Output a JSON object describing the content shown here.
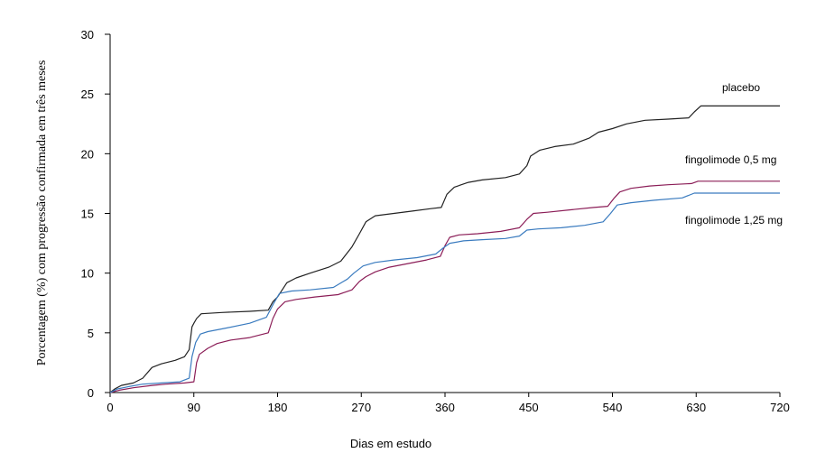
{
  "chart_data": {
    "type": "line",
    "xlabel": "Dias em estudo",
    "ylabel": "Porcentagem (%) com progressão confirmada em três meses",
    "xlim": [
      0,
      720
    ],
    "ylim": [
      0,
      30
    ],
    "x_ticks": [
      0,
      90,
      180,
      270,
      360,
      450,
      540,
      630,
      720
    ],
    "y_ticks": [
      0,
      5,
      10,
      15,
      20,
      25,
      30
    ],
    "grid": false,
    "series": [
      {
        "name": "placebo",
        "color": "#222222",
        "points": [
          [
            0,
            0
          ],
          [
            5,
            0.3
          ],
          [
            12,
            0.6
          ],
          [
            25,
            0.8
          ],
          [
            35,
            1.2
          ],
          [
            45,
            2.1
          ],
          [
            55,
            2.4
          ],
          [
            70,
            2.7
          ],
          [
            80,
            3.0
          ],
          [
            85,
            3.6
          ],
          [
            88,
            5.5
          ],
          [
            90,
            5.8
          ],
          [
            93,
            6.2
          ],
          [
            98,
            6.6
          ],
          [
            120,
            6.7
          ],
          [
            150,
            6.8
          ],
          [
            170,
            6.9
          ],
          [
            175,
            7.6
          ],
          [
            180,
            8.0
          ],
          [
            190,
            9.2
          ],
          [
            200,
            9.6
          ],
          [
            215,
            10.0
          ],
          [
            235,
            10.5
          ],
          [
            248,
            11.0
          ],
          [
            260,
            12.2
          ],
          [
            268,
            13.3
          ],
          [
            275,
            14.3
          ],
          [
            285,
            14.8
          ],
          [
            305,
            15.0
          ],
          [
            325,
            15.2
          ],
          [
            345,
            15.4
          ],
          [
            356,
            15.5
          ],
          [
            362,
            16.6
          ],
          [
            370,
            17.2
          ],
          [
            385,
            17.6
          ],
          [
            400,
            17.8
          ],
          [
            425,
            18.0
          ],
          [
            440,
            18.3
          ],
          [
            448,
            19.0
          ],
          [
            452,
            19.8
          ],
          [
            462,
            20.3
          ],
          [
            478,
            20.6
          ],
          [
            498,
            20.8
          ],
          [
            515,
            21.3
          ],
          [
            525,
            21.8
          ],
          [
            540,
            22.1
          ],
          [
            555,
            22.5
          ],
          [
            575,
            22.8
          ],
          [
            600,
            22.9
          ],
          [
            622,
            23.0
          ],
          [
            628,
            23.5
          ],
          [
            635,
            24.0
          ],
          [
            660,
            24.0
          ],
          [
            720,
            24.0
          ]
        ]
      },
      {
        "name": "fingolimode 0,5 mg",
        "color": "#8b1d57",
        "points": [
          [
            0,
            0
          ],
          [
            10,
            0.2
          ],
          [
            25,
            0.4
          ],
          [
            45,
            0.6
          ],
          [
            60,
            0.7
          ],
          [
            80,
            0.8
          ],
          [
            90,
            0.9
          ],
          [
            93,
            2.5
          ],
          [
            96,
            3.2
          ],
          [
            105,
            3.7
          ],
          [
            115,
            4.1
          ],
          [
            130,
            4.4
          ],
          [
            150,
            4.6
          ],
          [
            170,
            5.0
          ],
          [
            175,
            6.2
          ],
          [
            180,
            7.0
          ],
          [
            188,
            7.6
          ],
          [
            200,
            7.8
          ],
          [
            220,
            8.0
          ],
          [
            245,
            8.2
          ],
          [
            260,
            8.6
          ],
          [
            268,
            9.3
          ],
          [
            275,
            9.7
          ],
          [
            285,
            10.1
          ],
          [
            300,
            10.5
          ],
          [
            320,
            10.8
          ],
          [
            340,
            11.1
          ],
          [
            355,
            11.4
          ],
          [
            360,
            12.3
          ],
          [
            365,
            13.0
          ],
          [
            375,
            13.2
          ],
          [
            395,
            13.3
          ],
          [
            420,
            13.5
          ],
          [
            440,
            13.8
          ],
          [
            448,
            14.5
          ],
          [
            455,
            15.0
          ],
          [
            470,
            15.1
          ],
          [
            495,
            15.3
          ],
          [
            520,
            15.5
          ],
          [
            535,
            15.6
          ],
          [
            542,
            16.3
          ],
          [
            548,
            16.8
          ],
          [
            560,
            17.1
          ],
          [
            580,
            17.3
          ],
          [
            600,
            17.4
          ],
          [
            625,
            17.5
          ],
          [
            632,
            17.7
          ],
          [
            660,
            17.7
          ],
          [
            720,
            17.7
          ]
        ]
      },
      {
        "name": "fingolimode 1,25 mg",
        "color": "#3a7bbf",
        "points": [
          [
            0,
            0
          ],
          [
            8,
            0.3
          ],
          [
            20,
            0.5
          ],
          [
            35,
            0.7
          ],
          [
            55,
            0.8
          ],
          [
            75,
            0.9
          ],
          [
            85,
            1.2
          ],
          [
            88,
            3.0
          ],
          [
            92,
            4.2
          ],
          [
            97,
            4.9
          ],
          [
            105,
            5.1
          ],
          [
            125,
            5.4
          ],
          [
            150,
            5.8
          ],
          [
            168,
            6.3
          ],
          [
            176,
            7.5
          ],
          [
            182,
            8.3
          ],
          [
            195,
            8.5
          ],
          [
            215,
            8.6
          ],
          [
            240,
            8.8
          ],
          [
            255,
            9.5
          ],
          [
            262,
            10.0
          ],
          [
            272,
            10.6
          ],
          [
            285,
            10.9
          ],
          [
            305,
            11.1
          ],
          [
            330,
            11.3
          ],
          [
            350,
            11.6
          ],
          [
            358,
            12.1
          ],
          [
            365,
            12.5
          ],
          [
            380,
            12.7
          ],
          [
            400,
            12.8
          ],
          [
            425,
            12.9
          ],
          [
            440,
            13.1
          ],
          [
            448,
            13.6
          ],
          [
            460,
            13.7
          ],
          [
            485,
            13.8
          ],
          [
            510,
            14.0
          ],
          [
            530,
            14.3
          ],
          [
            538,
            15.0
          ],
          [
            545,
            15.7
          ],
          [
            560,
            15.9
          ],
          [
            585,
            16.1
          ],
          [
            615,
            16.3
          ],
          [
            628,
            16.7
          ],
          [
            660,
            16.7
          ],
          [
            720,
            16.7
          ]
        ]
      }
    ],
    "series_labels": [
      "placebo",
      "fingolimode 0,5 mg",
      "fingolimode 1,25 mg"
    ]
  }
}
